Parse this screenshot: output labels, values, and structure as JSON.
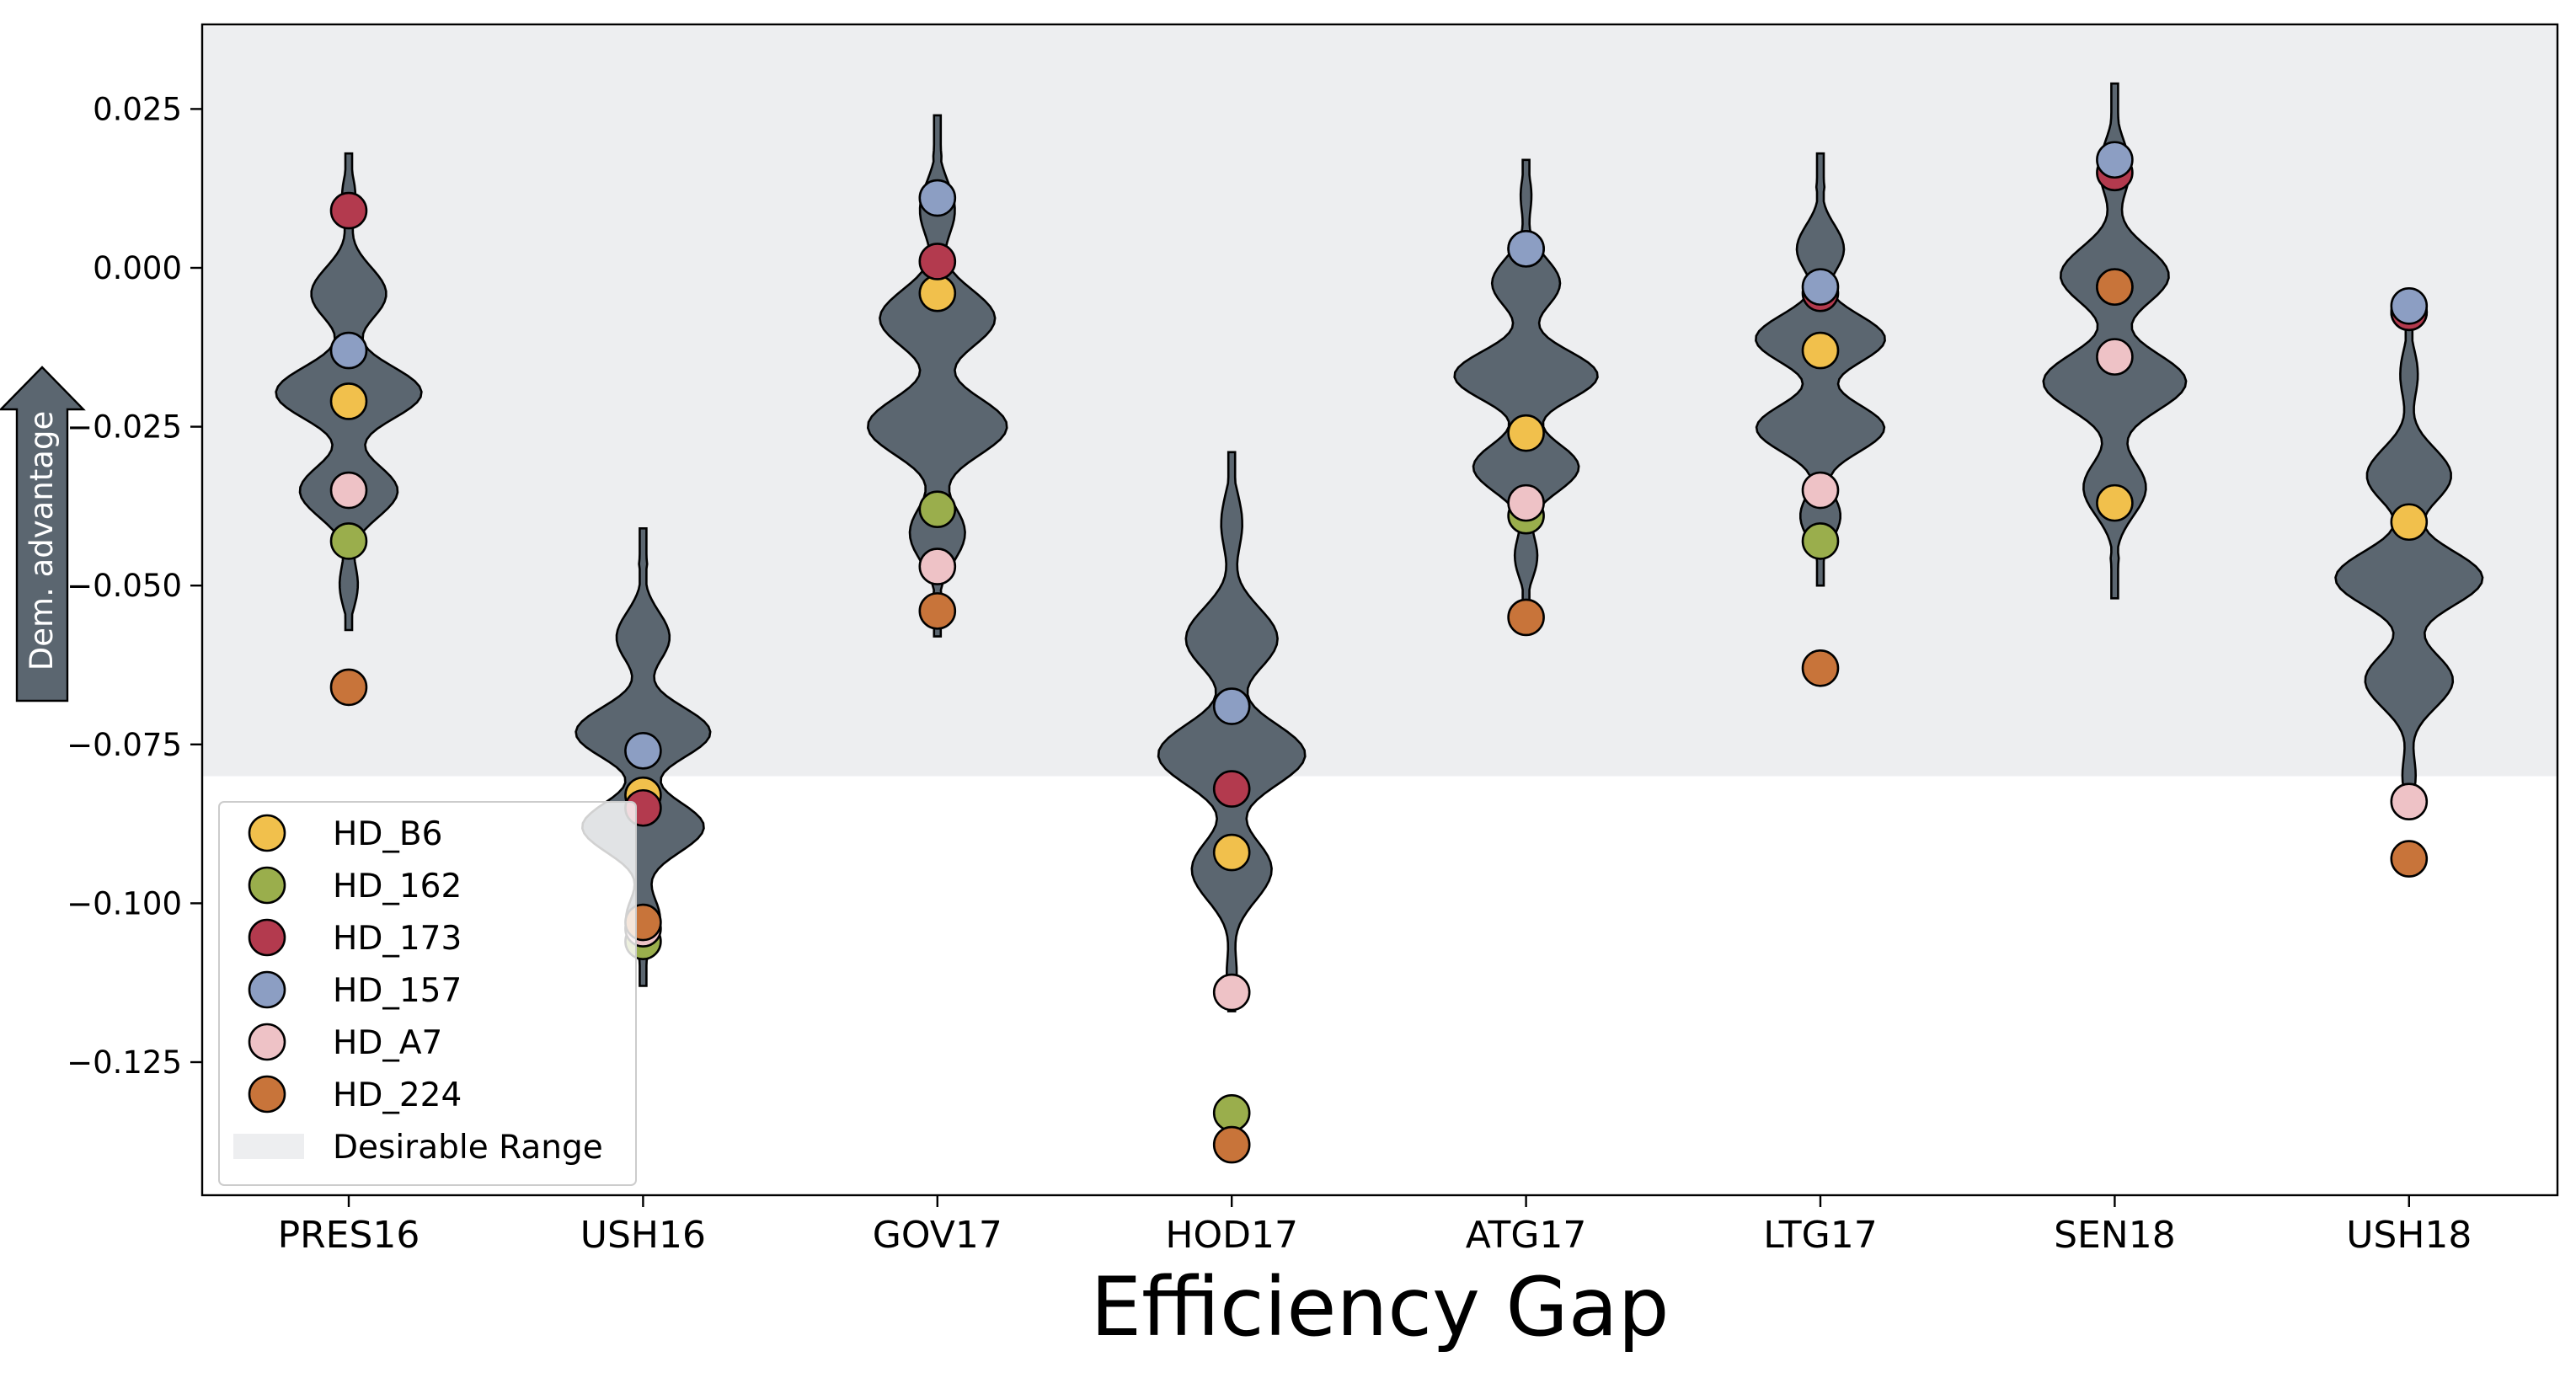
{
  "chart_data": {
    "type": "violin",
    "xlabel": "Efficiency Gap",
    "ylabel": "",
    "annotation_arrow_label": "Dem. advantage",
    "categories": [
      "PRES16",
      "USH16",
      "GOV17",
      "HOD17",
      "ATG17",
      "LTG17",
      "SEN18",
      "USH18"
    ],
    "y_ticks": [
      0.025,
      0.0,
      -0.025,
      -0.05,
      -0.075,
      -0.1,
      -0.125
    ],
    "y_tick_labels": [
      "0.025",
      "0.000",
      "−0.025",
      "−0.050",
      "−0.075",
      "−0.100",
      "−0.125"
    ],
    "ylim": [
      -0.146,
      0.038
    ],
    "desirable_range": [
      -0.08,
      0.038
    ],
    "colors": {
      "violin_fill": "#5b6670",
      "desirable_range": "#edeef0",
      "HD_B6": "#f1c04c",
      "HD_162": "#9aae4c",
      "HD_173": "#b33a4e",
      "HD_157": "#8c9ec3",
      "HD_A7": "#eec2c6",
      "HD_224": "#c8743a"
    },
    "violins": [
      {
        "category": "PRES16",
        "min": -0.057,
        "max": 0.018
      },
      {
        "category": "USH16",
        "min": -0.113,
        "max": -0.041
      },
      {
        "category": "GOV17",
        "min": -0.058,
        "max": 0.024
      },
      {
        "category": "HOD17",
        "min": -0.117,
        "max": -0.029
      },
      {
        "category": "ATG17",
        "min": -0.053,
        "max": 0.017
      },
      {
        "category": "LTG17",
        "min": -0.05,
        "max": 0.018
      },
      {
        "category": "SEN18",
        "min": -0.052,
        "max": 0.029
      },
      {
        "category": "USH18",
        "min": -0.086,
        "max": -0.008
      }
    ],
    "series": [
      {
        "name": "HD_B6",
        "values": [
          -0.021,
          -0.083,
          -0.004,
          -0.092,
          -0.026,
          -0.013,
          -0.037,
          -0.04
        ]
      },
      {
        "name": "HD_162",
        "values": [
          -0.043,
          -0.106,
          -0.038,
          -0.133,
          -0.039,
          -0.043,
          -0.003,
          -0.007
        ]
      },
      {
        "name": "HD_173",
        "values": [
          0.009,
          -0.085,
          0.001,
          -0.082,
          0.003,
          -0.004,
          0.015,
          -0.007
        ]
      },
      {
        "name": "HD_157",
        "values": [
          -0.013,
          -0.076,
          0.011,
          -0.069,
          0.003,
          -0.003,
          0.017,
          -0.006
        ]
      },
      {
        "name": "HD_A7",
        "values": [
          -0.035,
          -0.104,
          -0.047,
          -0.114,
          -0.037,
          -0.035,
          -0.014,
          -0.084
        ]
      },
      {
        "name": "HD_224",
        "values": [
          -0.066,
          -0.103,
          -0.054,
          -0.138,
          -0.055,
          -0.063,
          -0.003,
          -0.093
        ]
      }
    ],
    "legend": {
      "position": "lower-left",
      "entries": [
        "HD_B6",
        "HD_162",
        "HD_173",
        "HD_157",
        "HD_A7",
        "HD_224"
      ],
      "range_label": "Desirable Range"
    }
  }
}
